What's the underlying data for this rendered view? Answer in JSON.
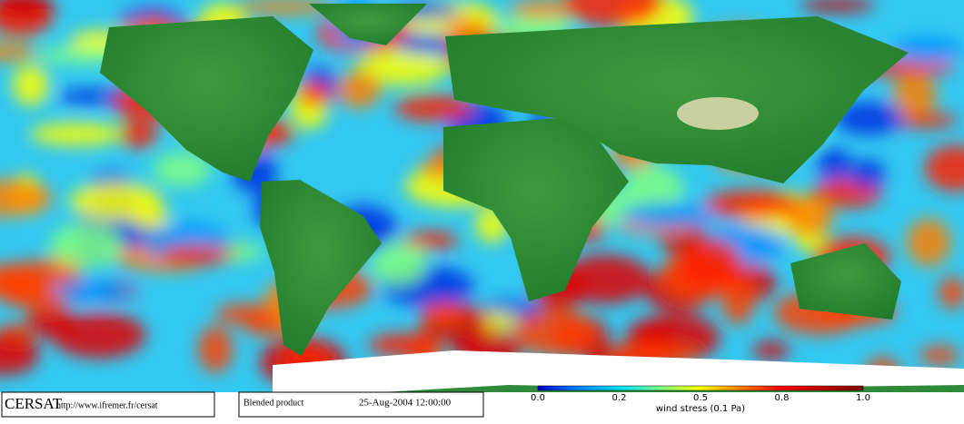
{
  "header": {
    "logo": "CERSAT",
    "url": "http://www.ifremer.fr/cersat",
    "product": "Blended product",
    "date": "25-Aug-2004 12:00:00"
  },
  "colorbar": {
    "ticks": [
      "0.0",
      "0.2",
      "0.5",
      "0.8",
      "1.0"
    ],
    "label": "wind stress (0.1 Pa)"
  }
}
